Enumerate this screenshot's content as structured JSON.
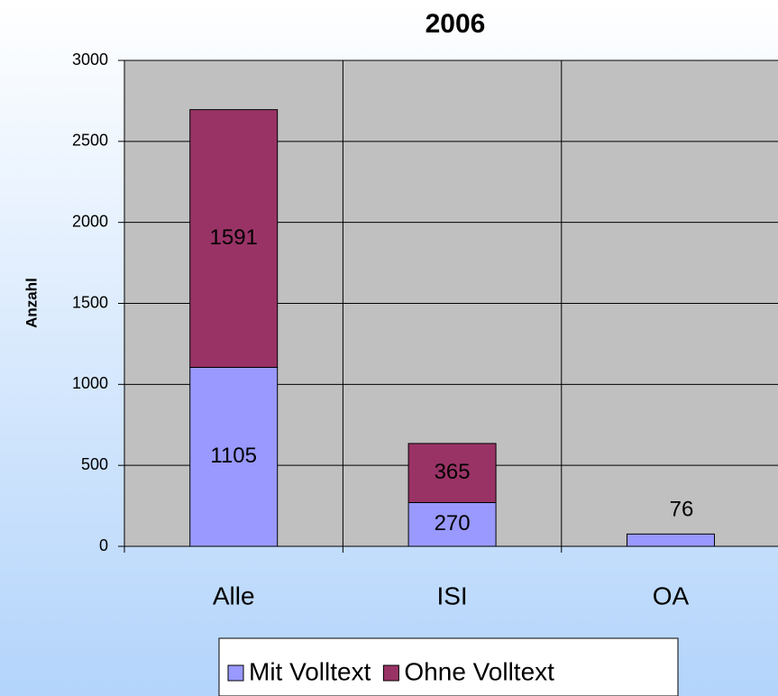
{
  "chart_data": {
    "type": "stacked_bar",
    "title": "2006",
    "y_label": "Anzahl",
    "categories": [
      "Alle",
      "ISI",
      "OA"
    ],
    "series": [
      {
        "name": "Mit Volltext",
        "color": "#9999ff",
        "values": [
          1105,
          270,
          76
        ]
      },
      {
        "name": "Ohne Volltext",
        "color": "#993366",
        "values": [
          1591,
          365,
          null
        ]
      }
    ],
    "ylim": [
      0,
      3000
    ],
    "yticks": [
      0,
      500,
      1000,
      1500,
      2000,
      2500,
      3000
    ],
    "grid": true,
    "legend": "bottom"
  }
}
